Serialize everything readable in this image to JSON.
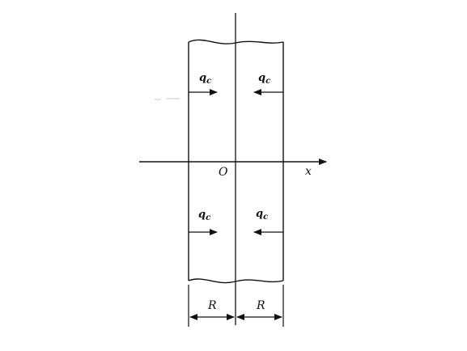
{
  "diagram": {
    "axis_label_x": "x",
    "origin_label": "O",
    "flux_label_main": "q",
    "flux_label_sub": "c",
    "dimension_left": "R",
    "dimension_right": "R"
  }
}
